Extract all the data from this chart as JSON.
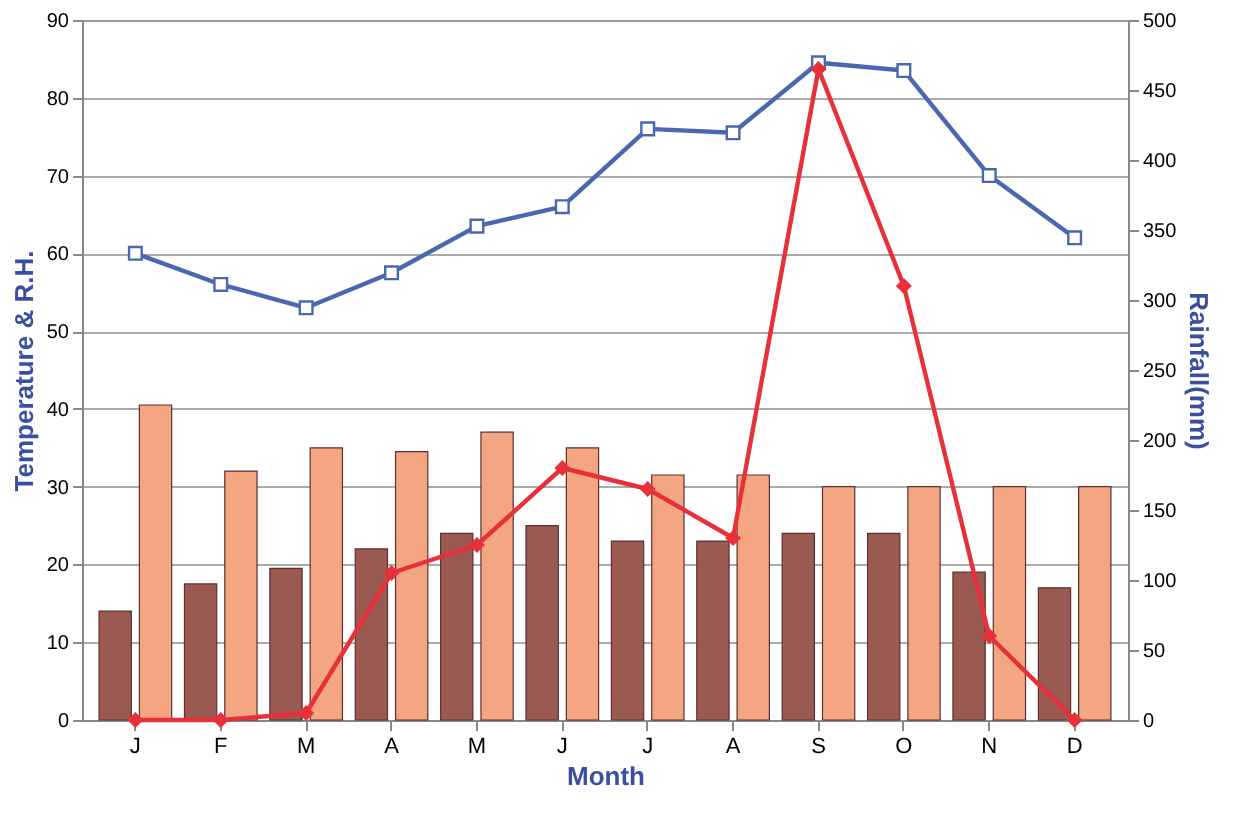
{
  "chart_data": {
    "type": "bar",
    "xlabel": "Month",
    "ylabel": "Temperature & R.H.",
    "y2label": "Rainfall(mm)",
    "categories": [
      "J",
      "F",
      "M",
      "A",
      "M",
      "J",
      "J",
      "A",
      "S",
      "O",
      "N",
      "D"
    ],
    "series": [
      {
        "color": "#9a5a52",
        "values": [
          14,
          17.5,
          19.5,
          22,
          24,
          25,
          23,
          23,
          24,
          24,
          19,
          17
        ]
      },
      {
        "color": "#f4a582",
        "values": [
          40.5,
          32,
          35,
          34.5,
          37,
          35,
          31.5,
          31.5,
          30,
          30,
          30,
          30
        ]
      },
      {
        "type": "line",
        "color": "#4a68b0",
        "marker": "square",
        "values": [
          60,
          56,
          53,
          57.5,
          63.5,
          66,
          76,
          75.5,
          84.5,
          83.5,
          70,
          62
        ]
      },
      {
        "type": "line",
        "color": "#e8303a",
        "marker": "diamond",
        "axis": "y2",
        "values": [
          0,
          0,
          5,
          105,
          125,
          180,
          165,
          130,
          465,
          310,
          60,
          0
        ]
      }
    ],
    "ylim": [
      0,
      90
    ],
    "yticks": [
      0,
      10,
      20,
      30,
      40,
      50,
      60,
      70,
      80,
      90
    ],
    "y2lim": [
      0,
      500
    ],
    "y2ticks": [
      0,
      50,
      100,
      150,
      200,
      250,
      300,
      350,
      400,
      450,
      500
    ],
    "grid": "y"
  }
}
